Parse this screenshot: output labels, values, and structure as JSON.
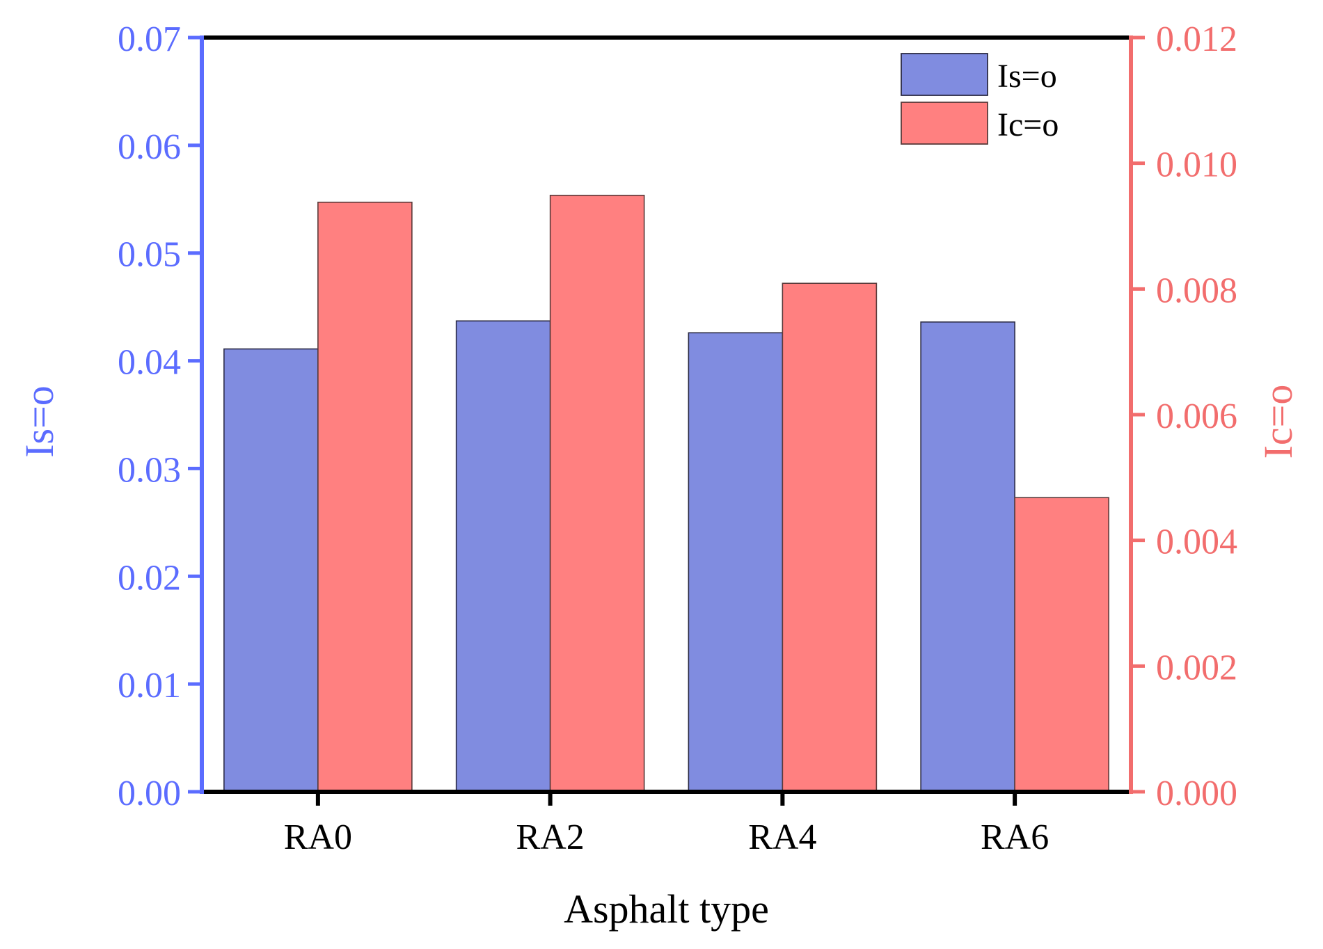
{
  "chart_data": {
    "type": "bar",
    "title": "",
    "xlabel": "Asphalt type",
    "categories": [
      "RA0",
      "RA2",
      "RA4",
      "RA6"
    ],
    "left_axis": {
      "label": "Is=o",
      "ylim": [
        0,
        0.07
      ],
      "ticks": [
        "0.00",
        "0.01",
        "0.02",
        "0.03",
        "0.04",
        "0.05",
        "0.06",
        "0.07"
      ],
      "color": "#5b6cff"
    },
    "right_axis": {
      "label": "Ic=o",
      "ylim": [
        0,
        0.012
      ],
      "ticks": [
        "0.000",
        "0.002",
        "0.004",
        "0.006",
        "0.008",
        "0.010",
        "0.012"
      ],
      "color": "#f26d6d"
    },
    "series": [
      {
        "name": "Is=o",
        "axis": "left",
        "values": [
          0.0411,
          0.0437,
          0.0426,
          0.0436
        ],
        "color": "#808ce0"
      },
      {
        "name": "Ic=o",
        "axis": "right",
        "values": [
          0.00938,
          0.00949,
          0.00809,
          0.00468
        ],
        "color": "#ff8080"
      }
    ],
    "legend": {
      "position": "top-right",
      "entries": [
        "Is=o",
        "Ic=o"
      ]
    }
  }
}
